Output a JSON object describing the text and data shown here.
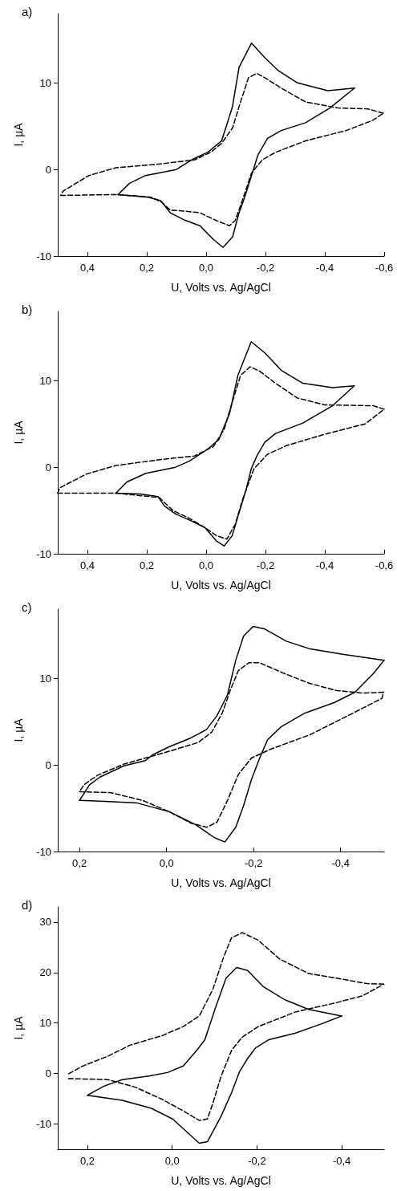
{
  "chart_data": [
    {
      "type": "line",
      "title": "a)",
      "xlabel": "U, Volts vs. Ag/AgCl",
      "ylabel": "I, µA",
      "xlim": [
        0.5,
        -0.6
      ],
      "ylim": [
        -10,
        18
      ],
      "xticks": [
        {
          "value": 0.4,
          "label": "0,4"
        },
        {
          "value": 0.2,
          "label": "0,2"
        },
        {
          "value": 0,
          "label": "0,0"
        },
        {
          "value": -0.2,
          "label": "-0,2"
        },
        {
          "value": -0.4,
          "label": "-0,4"
        },
        {
          "value": -0.6,
          "label": "-0,6"
        }
      ],
      "yticks": [
        -10,
        0,
        10
      ],
      "series": [
        {
          "color": "#000000",
          "line_style": "solid",
          "x": [
            0.297,
            0.258,
            0.204,
            0.1,
            0.044,
            -0.006,
            -0.052,
            -0.07,
            -0.089,
            -0.111,
            -0.153,
            -0.198,
            -0.244,
            -0.308,
            -0.41,
            -0.5
          ],
          "values": [
            -2.9,
            -1.6,
            -0.7,
            0,
            1.2,
            2,
            3.3,
            5.2,
            7.3,
            11.8,
            14.6,
            12.9,
            11.4,
            10,
            9.1,
            9.4
          ]
        },
        {
          "color": "#000000",
          "line_style": "solid",
          "x": [
            -0.5,
            -0.417,
            -0.335,
            -0.253,
            -0.207,
            -0.175,
            -0.153,
            -0.13,
            -0.111,
            -0.089,
            -0.057,
            -0.025,
            0.021,
            0.076,
            0.121,
            0.153,
            0.195,
            0.297
          ],
          "values": [
            9.4,
            7.1,
            5.4,
            4.5,
            3.6,
            1.7,
            -0.7,
            -3.2,
            -5,
            -7.8,
            -9,
            -8.1,
            -6.5,
            -5.8,
            -5,
            -3.6,
            -3.2,
            -2.9
          ]
        },
        {
          "color": "#000000",
          "line_style": "dashed",
          "x": [
            0.49,
            0.297,
            0.185,
            0.149,
            0.121,
            0.076,
            0.021,
            -0.034,
            -0.079,
            -0.098,
            -0.12,
            -0.153,
            -0.189,
            -0.235,
            -0.335,
            -0.472,
            -0.563,
            -0.597
          ],
          "values": [
            -3,
            -2.9,
            -3.2,
            -3.8,
            -4.7,
            -4.8,
            -5,
            -5.9,
            -6.5,
            -5.9,
            -3.8,
            -0.4,
            1.1,
            2,
            3.3,
            4.5,
            5.7,
            6.5
          ]
        },
        {
          "color": "#000000",
          "line_style": "dashed",
          "x": [
            -0.597,
            -0.545,
            -0.445,
            -0.335,
            -0.253,
            -0.198,
            -0.171,
            -0.143,
            -0.116,
            -0.089,
            -0.052,
            -0.016,
            0.039,
            0.167,
            0.304,
            0.395,
            0.482,
            0.49
          ],
          "values": [
            6.5,
            7,
            7.1,
            7.8,
            9.4,
            10.6,
            11.1,
            10.6,
            7.8,
            4.8,
            3,
            2,
            1.1,
            0.6,
            0.2,
            -0.7,
            -2.5,
            -3
          ]
        }
      ]
    },
    {
      "type": "line",
      "title": "b)",
      "xlabel": "U, Volts vs. Ag/AgCl",
      "ylabel": "I, µA",
      "xlim": [
        0.5,
        -0.6
      ],
      "ylim": [
        -10,
        18
      ],
      "xticks": [
        {
          "value": 0.4,
          "label": "0,4"
        },
        {
          "value": 0.2,
          "label": "0,2"
        },
        {
          "value": 0,
          "label": "0,0"
        },
        {
          "value": -0.2,
          "label": "-0,2"
        },
        {
          "value": -0.4,
          "label": "-0,4"
        },
        {
          "value": -0.6,
          "label": "-0,6"
        }
      ],
      "yticks": [
        -10,
        0,
        10
      ],
      "series": [
        {
          "color": "#000000",
          "line_style": "solid",
          "x": [
            0.304,
            0.267,
            0.203,
            0.103,
            0.057,
            -0.006,
            -0.043,
            -0.079,
            -0.107,
            -0.152,
            -0.198,
            -0.253,
            -0.326,
            -0.426,
            -0.499
          ],
          "values": [
            -3,
            -1.7,
            -0.7,
            0,
            0.7,
            2.1,
            3.2,
            6.2,
            10.6,
            14.5,
            13.2,
            11.2,
            9.7,
            9.2,
            9.4
          ]
        },
        {
          "color": "#000000",
          "line_style": "solid",
          "x": [
            -0.499,
            -0.426,
            -0.326,
            -0.234,
            -0.198,
            -0.171,
            -0.152,
            -0.134,
            -0.107,
            -0.088,
            -0.061,
            -0.034,
            0.003,
            0.057,
            0.103,
            0.14,
            0.162,
            0.222,
            0.304
          ],
          "values": [
            9.4,
            7.1,
            5.1,
            3.9,
            2.9,
            1.3,
            -0.2,
            -2.7,
            -5.7,
            -7.9,
            -9.1,
            -8.5,
            -7,
            -6.1,
            -5.4,
            -4.5,
            -3.4,
            -3.1,
            -3
          ]
        },
        {
          "color": "#000000",
          "line_style": "dashed",
          "x": [
            0.5,
            0.304,
            0.158,
            0.112,
            0.057,
            0.003,
            -0.034,
            -0.07,
            -0.098,
            -0.125,
            -0.161,
            -0.207,
            -0.271,
            -0.399,
            -0.536,
            -0.6
          ],
          "values": [
            -3,
            -3,
            -3.5,
            -5,
            -5.9,
            -7,
            -7.9,
            -8.3,
            -6.6,
            -3.5,
            -0.2,
            1.5,
            2.5,
            3.8,
            5,
            6.7
          ]
        },
        {
          "color": "#000000",
          "line_style": "dashed",
          "x": [
            -0.6,
            -0.563,
            -0.4,
            -0.307,
            -0.234,
            -0.18,
            -0.148,
            -0.116,
            -0.088,
            -0.061,
            -0.025,
            0.039,
            0.149,
            0.304,
            0.404,
            0.494,
            0.5
          ],
          "values": [
            6.7,
            7.1,
            7.2,
            8,
            9.7,
            11.1,
            11.6,
            10.6,
            7.5,
            4.4,
            2.4,
            1.3,
            0.9,
            0.2,
            -0.8,
            -2.4,
            -3
          ]
        }
      ]
    },
    {
      "type": "line",
      "title": "c)",
      "xlabel": "U, Volts vs. Ag/AgCl",
      "ylabel": "I, µA",
      "xlim": [
        0.25,
        -0.5
      ],
      "ylim": [
        -10,
        18
      ],
      "xticks": [
        {
          "value": 0.2,
          "label": "0,2"
        },
        {
          "value": 0,
          "label": "0,0"
        },
        {
          "value": -0.2,
          "label": "-0,2"
        },
        {
          "value": -0.4,
          "label": "-0,4"
        }
      ],
      "yticks": [
        -10,
        0,
        10
      ],
      "series": [
        {
          "color": "#000000",
          "line_style": "solid",
          "x": [
            0.2,
            0.177,
            0.153,
            0.098,
            0.049,
            0.031,
            -0.006,
            -0.055,
            -0.092,
            -0.116,
            -0.14,
            -0.159,
            -0.177,
            -0.199,
            -0.226,
            -0.275,
            -0.33,
            -0.402,
            -0.5
          ],
          "values": [
            -4.1,
            -2.3,
            -1.4,
            -0.1,
            0.5,
            1.2,
            2.1,
            3.1,
            4.1,
            5.7,
            8.1,
            12.1,
            14.9,
            16,
            15.7,
            14.3,
            13.4,
            12.8,
            12.1
          ]
        },
        {
          "color": "#000000",
          "line_style": "solid",
          "x": [
            -0.5,
            -0.476,
            -0.433,
            -0.385,
            -0.318,
            -0.263,
            -0.232,
            -0.214,
            -0.195,
            -0.177,
            -0.159,
            -0.134,
            -0.11,
            -0.067,
            -0.006,
            0.067,
            0.142,
            0.2
          ],
          "values": [
            12.1,
            10.6,
            8.4,
            7.2,
            6,
            4.4,
            2.9,
            0.8,
            -1.7,
            -4.7,
            -7.2,
            -8.9,
            -8.4,
            -6.9,
            -5.4,
            -4.4,
            -4.2,
            -4.1
          ]
        },
        {
          "color": "#000000",
          "line_style": "dashed",
          "x": [
            0.2,
            0.128,
            0.055,
            -0.006,
            -0.055,
            -0.092,
            -0.116,
            -0.14,
            -0.165,
            -0.195,
            -0.238,
            -0.33,
            -0.421,
            -0.495,
            -0.498
          ],
          "values": [
            -3.1,
            -3.2,
            -4.1,
            -5.4,
            -6.7,
            -7.2,
            -6.6,
            -4.1,
            -1.1,
            0.8,
            1.8,
            3.5,
            5.8,
            7.7,
            8.4
          ]
        },
        {
          "color": "#000000",
          "line_style": "dashed",
          "x": [
            -0.498,
            -0.452,
            -0.391,
            -0.33,
            -0.269,
            -0.214,
            -0.189,
            -0.165,
            -0.147,
            -0.128,
            -0.104,
            -0.073,
            0.006,
            0.098,
            0.159,
            0.19,
            0.2
          ],
          "values": [
            8.4,
            8.3,
            8.6,
            9.4,
            10.6,
            11.8,
            11.8,
            10.9,
            8.7,
            6,
            3.8,
            2.6,
            1.4,
            0.1,
            -1.2,
            -2.3,
            -3.1
          ]
        }
      ]
    },
    {
      "type": "line",
      "title": "d)",
      "xlabel": "U, Volts vs. Ag/AgCl",
      "ylabel": "I, µA",
      "xlim": [
        0.27,
        -0.5
      ],
      "ylim": [
        -15,
        33
      ],
      "xticks": [
        {
          "value": 0.2,
          "label": "0,2"
        },
        {
          "value": 0,
          "label": "0,0"
        },
        {
          "value": -0.2,
          "label": "-0,2"
        },
        {
          "value": -0.4,
          "label": "-0,4"
        }
      ],
      "yticks": [
        -10,
        0,
        10,
        20,
        30
      ],
      "series": [
        {
          "color": "#000000",
          "line_style": "solid",
          "x": [
            0.2,
            0.161,
            0.118,
            0.055,
            0.011,
            -0.026,
            -0.058,
            -0.077,
            -0.102,
            -0.127,
            -0.152,
            -0.178,
            -0.215,
            -0.266,
            -0.322,
            -0.4
          ],
          "values": [
            -4.3,
            -2.5,
            -1.2,
            -0.5,
            0.2,
            1.5,
            4.6,
            6.7,
            13,
            18.9,
            21,
            20.4,
            17.2,
            14.6,
            12.7,
            11.4
          ]
        },
        {
          "color": "#000000",
          "line_style": "solid",
          "x": [
            -0.4,
            -0.354,
            -0.291,
            -0.228,
            -0.197,
            -0.178,
            -0.159,
            -0.14,
            -0.115,
            -0.083,
            -0.064,
            -0.039,
            -0.001,
            0.049,
            0.118,
            0.2
          ],
          "values": [
            11.4,
            9.9,
            8,
            6.7,
            5.1,
            3,
            0.4,
            -3.8,
            -8.5,
            -13.5,
            -13.8,
            -11.9,
            -9,
            -6.9,
            -5.3,
            -4.3
          ]
        },
        {
          "color": "#000000",
          "line_style": "dashed",
          "x": [
            0.245,
            0.152,
            0.087,
            0.024,
            -0.026,
            -0.064,
            -0.083,
            -0.096,
            -0.115,
            -0.14,
            -0.165,
            -0.203,
            -0.291,
            -0.386,
            -0.449,
            -0.499
          ],
          "values": [
            -1,
            -1.2,
            -2.7,
            -5.1,
            -7.4,
            -9.3,
            -9,
            -5.9,
            -0.6,
            4.6,
            7.2,
            9.3,
            12.2,
            14,
            15.4,
            17.7
          ]
        },
        {
          "color": "#000000",
          "line_style": "dashed",
          "x": [
            -0.499,
            -0.461,
            -0.386,
            -0.322,
            -0.253,
            -0.203,
            -0.165,
            -0.14,
            -0.121,
            -0.096,
            -0.064,
            -0.026,
            0.024,
            0.1,
            0.15,
            0.213,
            0.245
          ],
          "values": [
            17.7,
            17.8,
            18.9,
            19.8,
            22.7,
            26.4,
            27.9,
            26.9,
            23,
            16.7,
            11.4,
            9.3,
            7.5,
            5.6,
            3.5,
            1.4,
            -0.1
          ]
        }
      ]
    }
  ]
}
